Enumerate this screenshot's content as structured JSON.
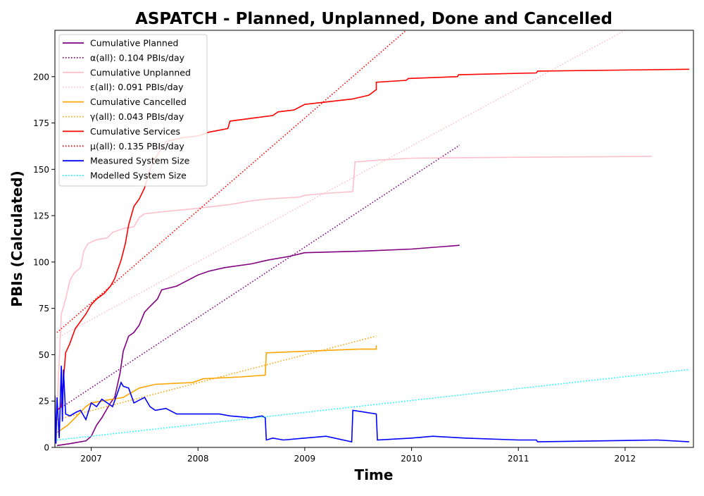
{
  "chart_data": {
    "type": "line",
    "title": "ASPATCH - Planned, Unplanned, Done  and Cancelled",
    "xlabel": "Time",
    "ylabel": "PBIs (Calculated)",
    "xlim": [
      2006.66,
      2012.64
    ],
    "ylim": [
      0,
      225
    ],
    "x_ticks": [
      2007,
      2008,
      2009,
      2010,
      2011,
      2012
    ],
    "y_ticks": [
      0,
      25,
      50,
      75,
      100,
      125,
      150,
      175,
      200
    ],
    "grid": false,
    "legend_position": "top-left",
    "series": [
      {
        "name": "Cumulative Planned",
        "color": "#800080",
        "style": "solid",
        "points": [
          [
            2006.68,
            1
          ],
          [
            2006.8,
            2
          ],
          [
            2006.95,
            3.5
          ],
          [
            2007.0,
            6
          ],
          [
            2007.05,
            12
          ],
          [
            2007.1,
            16
          ],
          [
            2007.14,
            20
          ],
          [
            2007.18,
            24
          ],
          [
            2007.22,
            27
          ],
          [
            2007.27,
            40
          ],
          [
            2007.3,
            52
          ],
          [
            2007.35,
            60
          ],
          [
            2007.4,
            62
          ],
          [
            2007.45,
            66
          ],
          [
            2007.5,
            73
          ],
          [
            2007.55,
            76
          ],
          [
            2007.62,
            80
          ],
          [
            2007.66,
            85
          ],
          [
            2007.8,
            87
          ],
          [
            2008.0,
            93
          ],
          [
            2008.1,
            95
          ],
          [
            2008.25,
            97
          ],
          [
            2008.5,
            99
          ],
          [
            2008.65,
            101
          ],
          [
            2008.85,
            103
          ],
          [
            2009.0,
            105
          ],
          [
            2009.6,
            106
          ],
          [
            2010.0,
            107
          ],
          [
            2010.45,
            109
          ]
        ]
      },
      {
        "name": "α(all): 0.104 PBIs/day",
        "color": "#800080",
        "style": "dotted",
        "points": [
          [
            2006.68,
            20
          ],
          [
            2010.45,
            163
          ]
        ]
      },
      {
        "name": "Cumulative Unplanned",
        "color": "#ffc0cb",
        "style": "solid",
        "points": [
          [
            2006.68,
            20
          ],
          [
            2006.72,
            72
          ],
          [
            2006.76,
            80
          ],
          [
            2006.8,
            90
          ],
          [
            2006.84,
            94
          ],
          [
            2006.9,
            97
          ],
          [
            2006.93,
            106
          ],
          [
            2006.97,
            110
          ],
          [
            2007.05,
            112
          ],
          [
            2007.15,
            113
          ],
          [
            2007.2,
            116
          ],
          [
            2007.3,
            118
          ],
          [
            2007.4,
            119
          ],
          [
            2007.45,
            124
          ],
          [
            2007.5,
            126
          ],
          [
            2007.65,
            127
          ],
          [
            2008.0,
            129
          ],
          [
            2008.3,
            131
          ],
          [
            2008.5,
            133
          ],
          [
            2008.65,
            134
          ],
          [
            2008.95,
            135
          ],
          [
            2009.0,
            136
          ],
          [
            2009.2,
            137
          ],
          [
            2009.45,
            138
          ],
          [
            2009.47,
            154
          ],
          [
            2009.7,
            155
          ],
          [
            2010.0,
            156
          ],
          [
            2011.0,
            156.5
          ],
          [
            2012.25,
            157
          ]
        ]
      },
      {
        "name": "ε(all): 0.091 PBIs/day",
        "color": "#ffc0cb",
        "style": "dotted",
        "points": [
          [
            2006.68,
            59
          ],
          [
            2012.0,
            225
          ]
        ]
      },
      {
        "name": "Cumulative Cancelled",
        "color": "#ffa500",
        "style": "solid",
        "points": [
          [
            2006.68,
            8
          ],
          [
            2006.78,
            12
          ],
          [
            2006.85,
            16
          ],
          [
            2006.95,
            22
          ],
          [
            2007.0,
            24
          ],
          [
            2007.1,
            25
          ],
          [
            2007.3,
            27
          ],
          [
            2007.45,
            32
          ],
          [
            2007.6,
            34
          ],
          [
            2007.95,
            35
          ],
          [
            2008.05,
            37
          ],
          [
            2008.4,
            38
          ],
          [
            2008.63,
            39
          ],
          [
            2008.64,
            51
          ],
          [
            2009.5,
            53
          ],
          [
            2009.67,
            53
          ],
          [
            2009.67,
            55
          ]
        ]
      },
      {
        "name": "γ(all): 0.043 PBIs/day",
        "color": "#ffa500",
        "style": "dotted",
        "points": [
          [
            2006.68,
            15
          ],
          [
            2009.67,
            60
          ]
        ]
      },
      {
        "name": "Cumulative Services",
        "color": "#ff0000",
        "style": "solid",
        "points": [
          [
            2006.68,
            20
          ],
          [
            2006.72,
            22
          ],
          [
            2006.76,
            51
          ],
          [
            2006.8,
            56
          ],
          [
            2006.85,
            64
          ],
          [
            2006.9,
            68
          ],
          [
            2006.95,
            72
          ],
          [
            2007.0,
            77
          ],
          [
            2007.05,
            80
          ],
          [
            2007.12,
            83
          ],
          [
            2007.18,
            87
          ],
          [
            2007.22,
            91
          ],
          [
            2007.28,
            101
          ],
          [
            2007.32,
            110
          ],
          [
            2007.35,
            120
          ],
          [
            2007.4,
            130
          ],
          [
            2007.45,
            134
          ],
          [
            2007.5,
            140
          ],
          [
            2007.55,
            150
          ],
          [
            2007.6,
            156
          ],
          [
            2007.7,
            165
          ],
          [
            2007.85,
            167
          ],
          [
            2008.0,
            168
          ],
          [
            2008.1,
            170
          ],
          [
            2008.28,
            172
          ],
          [
            2008.3,
            176
          ],
          [
            2008.7,
            179
          ],
          [
            2008.75,
            181
          ],
          [
            2008.9,
            182
          ],
          [
            2009.0,
            185
          ],
          [
            2009.45,
            188
          ],
          [
            2009.6,
            190
          ],
          [
            2009.67,
            193
          ],
          [
            2009.67,
            197
          ],
          [
            2009.95,
            198
          ],
          [
            2009.97,
            199
          ],
          [
            2010.43,
            200
          ],
          [
            2010.44,
            201
          ],
          [
            2011.17,
            202
          ],
          [
            2011.18,
            203
          ],
          [
            2012.6,
            204
          ]
        ]
      },
      {
        "name": "μ(all): 0.135 PBIs/day",
        "color": "#ff0000",
        "style": "dotted",
        "points": [
          [
            2006.68,
            62
          ],
          [
            2009.95,
            225
          ]
        ]
      },
      {
        "name": "Measured System Size",
        "color": "#0000ff",
        "style": "solid",
        "points": [
          [
            2006.66,
            28
          ],
          [
            2006.67,
            2
          ],
          [
            2006.68,
            27
          ],
          [
            2006.7,
            5
          ],
          [
            2006.72,
            44
          ],
          [
            2006.73,
            14
          ],
          [
            2006.74,
            42
          ],
          [
            2006.76,
            18
          ],
          [
            2006.8,
            17
          ],
          [
            2006.86,
            19
          ],
          [
            2006.9,
            20
          ],
          [
            2006.95,
            15
          ],
          [
            2007.0,
            24
          ],
          [
            2007.05,
            22
          ],
          [
            2007.1,
            26
          ],
          [
            2007.15,
            24
          ],
          [
            2007.2,
            22
          ],
          [
            2007.25,
            30
          ],
          [
            2007.28,
            35
          ],
          [
            2007.3,
            33
          ],
          [
            2007.35,
            32
          ],
          [
            2007.4,
            24
          ],
          [
            2007.5,
            27
          ],
          [
            2007.55,
            22
          ],
          [
            2007.6,
            20
          ],
          [
            2007.7,
            21
          ],
          [
            2007.8,
            18
          ],
          [
            2008.0,
            18
          ],
          [
            2008.2,
            18
          ],
          [
            2008.3,
            17
          ],
          [
            2008.5,
            16
          ],
          [
            2008.6,
            17
          ],
          [
            2008.63,
            16
          ],
          [
            2008.64,
            4
          ],
          [
            2008.7,
            5
          ],
          [
            2008.8,
            4
          ],
          [
            2009.0,
            5
          ],
          [
            2009.2,
            6
          ],
          [
            2009.44,
            3
          ],
          [
            2009.45,
            20
          ],
          [
            2009.67,
            18
          ],
          [
            2009.68,
            4
          ],
          [
            2010.0,
            5
          ],
          [
            2010.2,
            6
          ],
          [
            2010.5,
            5
          ],
          [
            2011.0,
            4
          ],
          [
            2011.17,
            4
          ],
          [
            2011.18,
            3
          ],
          [
            2012.3,
            4
          ],
          [
            2012.6,
            3
          ]
        ]
      },
      {
        "name": "Modelled System Size",
        "color": "#00ffff",
        "style": "dotted",
        "points": [
          [
            2006.68,
            4
          ],
          [
            2012.6,
            42
          ]
        ]
      }
    ]
  }
}
